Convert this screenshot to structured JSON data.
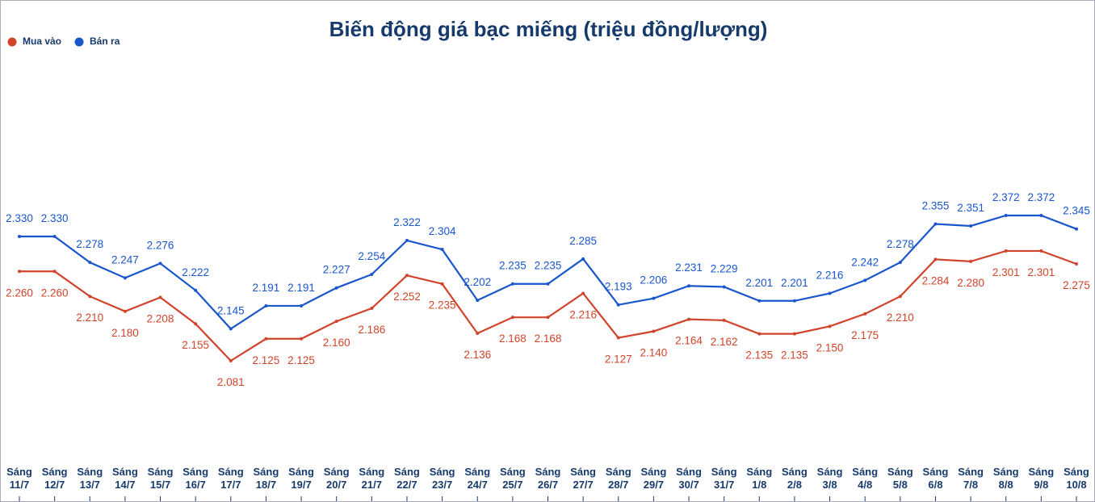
{
  "chart_data": {
    "type": "line",
    "title": "Biến động giá bạc miếng (triệu đồng/lượng)",
    "categories": [
      "Sáng 11/7",
      "Sáng 12/7",
      "Sáng 13/7",
      "Sáng 14/7",
      "Sáng 15/7",
      "Sáng 16/7",
      "Sáng 17/7",
      "Sáng 18/7",
      "Sáng 19/7",
      "Sáng 20/7",
      "Sáng 21/7",
      "Sáng 22/7",
      "Sáng 23/7",
      "Sáng 24/7",
      "Sáng 25/7",
      "Sáng 26/7",
      "Sáng 27/7",
      "Sáng 28/7",
      "Sáng 29/7",
      "Sáng 30/7",
      "Sáng 31/7",
      "Sáng 1/8",
      "Sáng 2/8",
      "Sáng 3/8",
      "Sáng 4/8",
      "Sáng 5/8",
      "Sáng 6/8",
      "Sáng 7/8",
      "Sáng 8/8",
      "Sáng 9/8",
      "Sáng 10/8"
    ],
    "legend": "top-left",
    "series": [
      {
        "name": "Mua vào",
        "color": "#d1432b",
        "values": [
          2.26,
          2.26,
          2.21,
          2.18,
          2.208,
          2.155,
          2.081,
          2.125,
          2.125,
          2.16,
          2.186,
          2.252,
          2.235,
          2.136,
          2.168,
          2.168,
          2.216,
          2.127,
          2.14,
          2.164,
          2.162,
          2.135,
          2.135,
          2.15,
          2.175,
          2.21,
          2.284,
          2.28,
          2.301,
          2.301,
          2.275
        ],
        "value_labels": [
          "2.260",
          "2.260",
          "2.210",
          "2.180",
          "2.208",
          "2.155",
          "2.081",
          "2.125",
          "2.125",
          "2.160",
          "2.186",
          "2.252",
          "2.235",
          "2.136",
          "2.168",
          "2.168",
          "2.216",
          "2.127",
          "2.140",
          "2.164",
          "2.162",
          "2.135",
          "2.135",
          "2.150",
          "2.175",
          "2.210",
          "2.284",
          "2.280",
          "2.301",
          "2.301",
          "2.275"
        ]
      },
      {
        "name": "Bán ra",
        "color": "#1a56cc",
        "values": [
          2.33,
          2.33,
          2.278,
          2.247,
          2.276,
          2.222,
          2.145,
          2.191,
          2.191,
          2.227,
          2.254,
          2.322,
          2.304,
          2.202,
          2.235,
          2.235,
          2.285,
          2.193,
          2.206,
          2.231,
          2.229,
          2.201,
          2.201,
          2.216,
          2.242,
          2.278,
          2.355,
          2.351,
          2.372,
          2.372,
          2.345
        ],
        "value_labels": [
          "2.330",
          "2.330",
          "2.278",
          "2.247",
          "2.276",
          "2.222",
          "2.145",
          "2.191",
          "2.191",
          "2.227",
          "2.254",
          "2.322",
          "2.304",
          "2.202",
          "2.235",
          "2.235",
          "2.285",
          "2.193",
          "2.206",
          "2.231",
          "2.229",
          "2.201",
          "2.201",
          "2.216",
          "2.242",
          "2.278",
          "2.355",
          "2.351",
          "2.372",
          "2.372",
          "2.345"
        ]
      }
    ]
  }
}
